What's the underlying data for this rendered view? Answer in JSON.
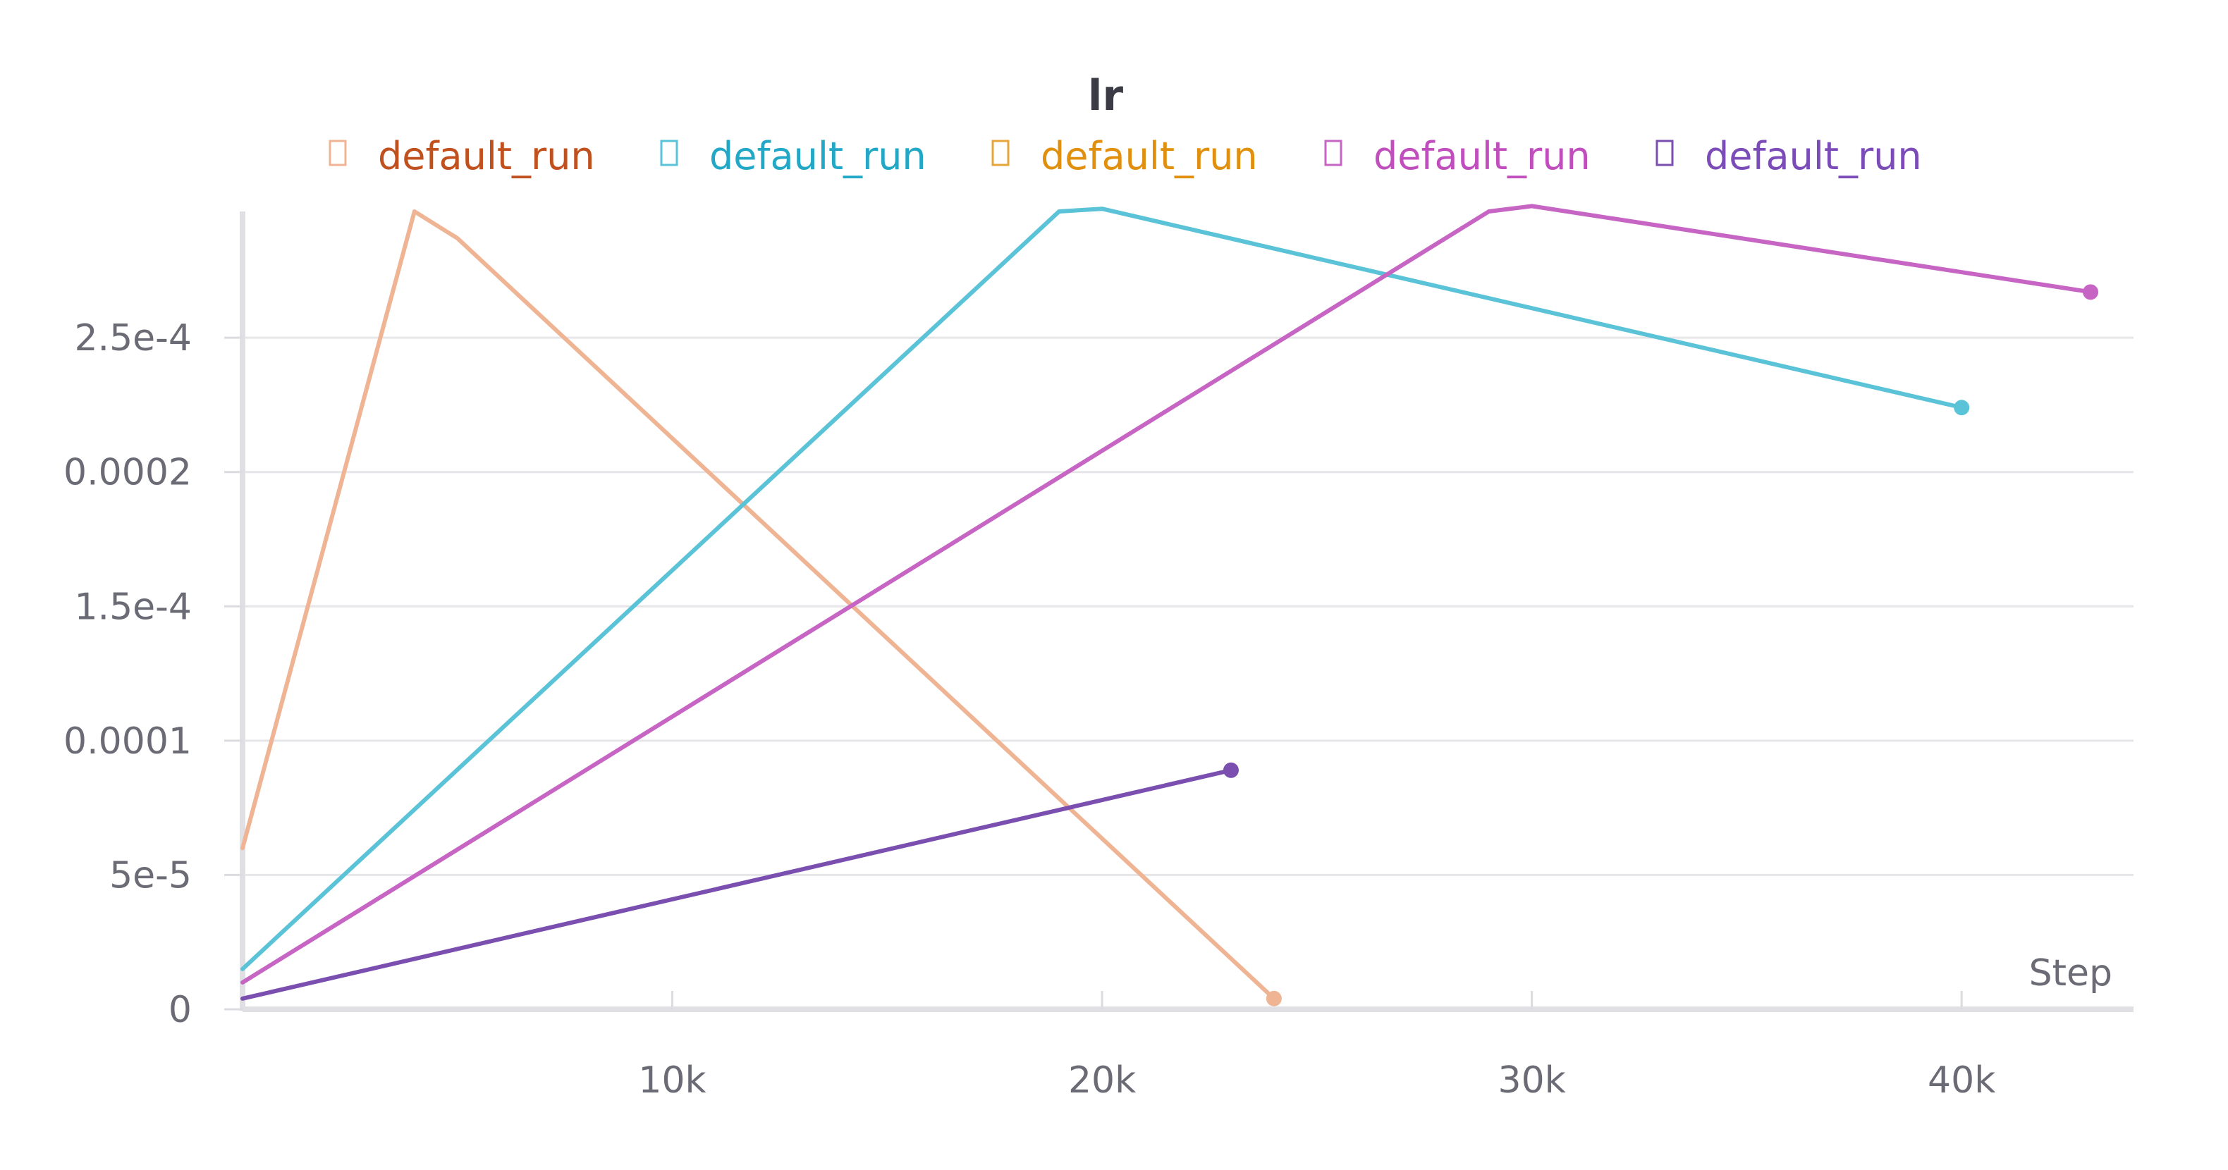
{
  "chart_data": {
    "type": "line",
    "title": "lr",
    "xlabel": "Step",
    "ylabel": "",
    "xlim": [
      0,
      44000
    ],
    "ylim": [
      0,
      0.000297
    ],
    "xticks": [
      10000,
      20000,
      30000,
      40000
    ],
    "xtick_labels": [
      "10k",
      "20k",
      "30k",
      "40k"
    ],
    "yticks": [
      0,
      5e-05,
      0.0001,
      0.00015,
      0.0002,
      0.00025
    ],
    "ytick_labels": [
      "0",
      "5e-5",
      "0.0001",
      "1.5e-4",
      "0.0002",
      "2.5e-4"
    ],
    "grid": true,
    "legend_position": "top-center",
    "series": [
      {
        "name": "default_run",
        "color": "#efb494",
        "legend_text_color": "#c0501e",
        "x": [
          0,
          4000,
          5000,
          24000
        ],
        "y": [
          6e-05,
          0.000297,
          0.000287,
          4e-06
        ]
      },
      {
        "name": "default_run",
        "color": "#5bc3d7",
        "legend_text_color": "#22a8c6",
        "x": [
          0,
          19000,
          20000,
          40000
        ],
        "y": [
          1.5e-05,
          0.000297,
          0.000298,
          0.000224
        ]
      },
      {
        "name": "default_run",
        "color": "#e8a53a",
        "legend_text_color": "#e0900e",
        "x": [],
        "y": []
      },
      {
        "name": "default_run",
        "color": "#c665c3",
        "legend_text_color": "#c04fbd",
        "x": [
          0,
          29000,
          30000,
          43000
        ],
        "y": [
          1e-05,
          0.000297,
          0.000299,
          0.000267
        ]
      },
      {
        "name": "default_run",
        "color": "#7a4fb0",
        "legend_text_color": "#7b4cb8",
        "x": [
          0,
          23000
        ],
        "y": [
          4e-06,
          8.9e-05
        ]
      }
    ]
  }
}
